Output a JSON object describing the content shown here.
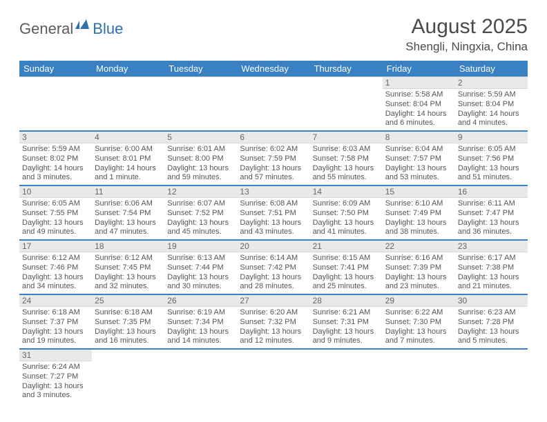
{
  "brand": {
    "part1": "General",
    "part2": "Blue"
  },
  "title": "August 2025",
  "location": "Shengli, Ningxia, China",
  "colors": {
    "header_bg": "#3a81c4",
    "header_text": "#ffffff",
    "daynum_bg": "#e9e9e9",
    "cell_border": "#d7d7d7",
    "week_sep": "#3a81c4",
    "body_text": "#555555",
    "brand_gray": "#5b5b5b",
    "brand_blue": "#2f6fb0"
  },
  "weekdays": [
    "Sunday",
    "Monday",
    "Tuesday",
    "Wednesday",
    "Thursday",
    "Friday",
    "Saturday"
  ],
  "weeks": [
    [
      {
        "day": "",
        "lines": []
      },
      {
        "day": "",
        "lines": []
      },
      {
        "day": "",
        "lines": []
      },
      {
        "day": "",
        "lines": []
      },
      {
        "day": "",
        "lines": []
      },
      {
        "day": "1",
        "lines": [
          "Sunrise: 5:58 AM",
          "Sunset: 8:04 PM",
          "Daylight: 14 hours and 6 minutes."
        ]
      },
      {
        "day": "2",
        "lines": [
          "Sunrise: 5:59 AM",
          "Sunset: 8:04 PM",
          "Daylight: 14 hours and 4 minutes."
        ]
      }
    ],
    [
      {
        "day": "3",
        "lines": [
          "Sunrise: 5:59 AM",
          "Sunset: 8:02 PM",
          "Daylight: 14 hours and 3 minutes."
        ]
      },
      {
        "day": "4",
        "lines": [
          "Sunrise: 6:00 AM",
          "Sunset: 8:01 PM",
          "Daylight: 14 hours and 1 minute."
        ]
      },
      {
        "day": "5",
        "lines": [
          "Sunrise: 6:01 AM",
          "Sunset: 8:00 PM",
          "Daylight: 13 hours and 59 minutes."
        ]
      },
      {
        "day": "6",
        "lines": [
          "Sunrise: 6:02 AM",
          "Sunset: 7:59 PM",
          "Daylight: 13 hours and 57 minutes."
        ]
      },
      {
        "day": "7",
        "lines": [
          "Sunrise: 6:03 AM",
          "Sunset: 7:58 PM",
          "Daylight: 13 hours and 55 minutes."
        ]
      },
      {
        "day": "8",
        "lines": [
          "Sunrise: 6:04 AM",
          "Sunset: 7:57 PM",
          "Daylight: 13 hours and 53 minutes."
        ]
      },
      {
        "day": "9",
        "lines": [
          "Sunrise: 6:05 AM",
          "Sunset: 7:56 PM",
          "Daylight: 13 hours and 51 minutes."
        ]
      }
    ],
    [
      {
        "day": "10",
        "lines": [
          "Sunrise: 6:05 AM",
          "Sunset: 7:55 PM",
          "Daylight: 13 hours and 49 minutes."
        ]
      },
      {
        "day": "11",
        "lines": [
          "Sunrise: 6:06 AM",
          "Sunset: 7:54 PM",
          "Daylight: 13 hours and 47 minutes."
        ]
      },
      {
        "day": "12",
        "lines": [
          "Sunrise: 6:07 AM",
          "Sunset: 7:52 PM",
          "Daylight: 13 hours and 45 minutes."
        ]
      },
      {
        "day": "13",
        "lines": [
          "Sunrise: 6:08 AM",
          "Sunset: 7:51 PM",
          "Daylight: 13 hours and 43 minutes."
        ]
      },
      {
        "day": "14",
        "lines": [
          "Sunrise: 6:09 AM",
          "Sunset: 7:50 PM",
          "Daylight: 13 hours and 41 minutes."
        ]
      },
      {
        "day": "15",
        "lines": [
          "Sunrise: 6:10 AM",
          "Sunset: 7:49 PM",
          "Daylight: 13 hours and 38 minutes."
        ]
      },
      {
        "day": "16",
        "lines": [
          "Sunrise: 6:11 AM",
          "Sunset: 7:47 PM",
          "Daylight: 13 hours and 36 minutes."
        ]
      }
    ],
    [
      {
        "day": "17",
        "lines": [
          "Sunrise: 6:12 AM",
          "Sunset: 7:46 PM",
          "Daylight: 13 hours and 34 minutes."
        ]
      },
      {
        "day": "18",
        "lines": [
          "Sunrise: 6:12 AM",
          "Sunset: 7:45 PM",
          "Daylight: 13 hours and 32 minutes."
        ]
      },
      {
        "day": "19",
        "lines": [
          "Sunrise: 6:13 AM",
          "Sunset: 7:44 PM",
          "Daylight: 13 hours and 30 minutes."
        ]
      },
      {
        "day": "20",
        "lines": [
          "Sunrise: 6:14 AM",
          "Sunset: 7:42 PM",
          "Daylight: 13 hours and 28 minutes."
        ]
      },
      {
        "day": "21",
        "lines": [
          "Sunrise: 6:15 AM",
          "Sunset: 7:41 PM",
          "Daylight: 13 hours and 25 minutes."
        ]
      },
      {
        "day": "22",
        "lines": [
          "Sunrise: 6:16 AM",
          "Sunset: 7:39 PM",
          "Daylight: 13 hours and 23 minutes."
        ]
      },
      {
        "day": "23",
        "lines": [
          "Sunrise: 6:17 AM",
          "Sunset: 7:38 PM",
          "Daylight: 13 hours and 21 minutes."
        ]
      }
    ],
    [
      {
        "day": "24",
        "lines": [
          "Sunrise: 6:18 AM",
          "Sunset: 7:37 PM",
          "Daylight: 13 hours and 19 minutes."
        ]
      },
      {
        "day": "25",
        "lines": [
          "Sunrise: 6:18 AM",
          "Sunset: 7:35 PM",
          "Daylight: 13 hours and 16 minutes."
        ]
      },
      {
        "day": "26",
        "lines": [
          "Sunrise: 6:19 AM",
          "Sunset: 7:34 PM",
          "Daylight: 13 hours and 14 minutes."
        ]
      },
      {
        "day": "27",
        "lines": [
          "Sunrise: 6:20 AM",
          "Sunset: 7:32 PM",
          "Daylight: 13 hours and 12 minutes."
        ]
      },
      {
        "day": "28",
        "lines": [
          "Sunrise: 6:21 AM",
          "Sunset: 7:31 PM",
          "Daylight: 13 hours and 9 minutes."
        ]
      },
      {
        "day": "29",
        "lines": [
          "Sunrise: 6:22 AM",
          "Sunset: 7:30 PM",
          "Daylight: 13 hours and 7 minutes."
        ]
      },
      {
        "day": "30",
        "lines": [
          "Sunrise: 6:23 AM",
          "Sunset: 7:28 PM",
          "Daylight: 13 hours and 5 minutes."
        ]
      }
    ],
    [
      {
        "day": "31",
        "lines": [
          "Sunrise: 6:24 AM",
          "Sunset: 7:27 PM",
          "Daylight: 13 hours and 3 minutes."
        ]
      },
      {
        "day": "",
        "lines": []
      },
      {
        "day": "",
        "lines": []
      },
      {
        "day": "",
        "lines": []
      },
      {
        "day": "",
        "lines": []
      },
      {
        "day": "",
        "lines": []
      },
      {
        "day": "",
        "lines": []
      }
    ]
  ]
}
